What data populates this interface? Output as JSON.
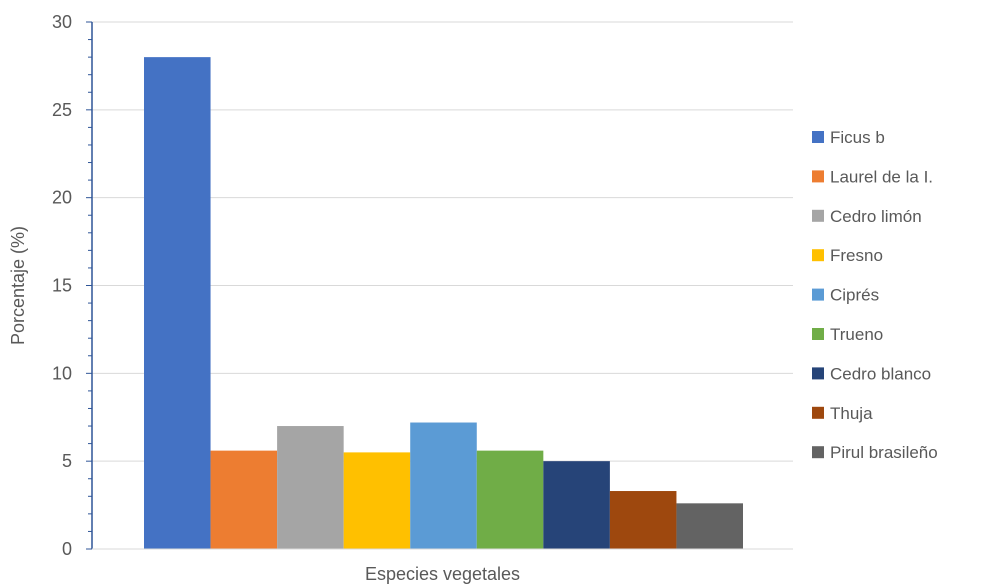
{
  "chart_data": {
    "type": "bar",
    "title": "",
    "xlabel": "Especies vegetales",
    "ylabel": "Porcentaje (%)",
    "ylim": [
      0,
      30
    ],
    "yticks": [
      0,
      5,
      10,
      15,
      20,
      25,
      30
    ],
    "grid": true,
    "legend_position": "right",
    "categories": [
      ""
    ],
    "series": [
      {
        "name": "Ficus b",
        "values": [
          28.0
        ],
        "color": "#4472C4"
      },
      {
        "name": "Laurel de la I.",
        "values": [
          5.6
        ],
        "color": "#ED7D31"
      },
      {
        "name": "Cedro limón",
        "values": [
          7.0
        ],
        "color": "#A5A5A5"
      },
      {
        "name": "Fresno",
        "values": [
          5.5
        ],
        "color": "#FFC000"
      },
      {
        "name": "Ciprés",
        "values": [
          7.2
        ],
        "color": "#5B9BD5"
      },
      {
        "name": "Trueno",
        "values": [
          5.6
        ],
        "color": "#70AD47"
      },
      {
        "name": "Cedro blanco",
        "values": [
          5.0
        ],
        "color": "#264478"
      },
      {
        "name": "Thuja",
        "values": [
          3.3
        ],
        "color": "#9E480E"
      },
      {
        "name": "Pirul brasileño",
        "values": [
          2.6
        ],
        "color": "#636363"
      }
    ]
  }
}
